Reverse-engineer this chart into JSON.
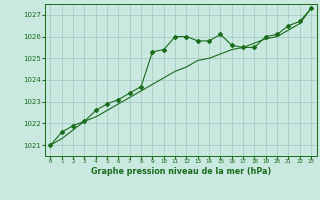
{
  "x": [
    0,
    1,
    2,
    3,
    4,
    5,
    6,
    7,
    8,
    9,
    10,
    11,
    12,
    13,
    14,
    15,
    16,
    17,
    18,
    19,
    20,
    21,
    22,
    23
  ],
  "line1": [
    1021.0,
    1021.6,
    1021.9,
    1022.1,
    1022.6,
    1022.9,
    1023.1,
    1023.4,
    1023.7,
    1025.3,
    1025.4,
    1026.0,
    1026.0,
    1025.8,
    1025.8,
    1026.1,
    1025.6,
    1025.5,
    1025.5,
    1026.0,
    1026.1,
    1026.5,
    1026.7,
    1027.3
  ],
  "line2": [
    1021.0,
    1021.3,
    1021.7,
    1022.1,
    1022.3,
    1022.6,
    1022.9,
    1023.2,
    1023.5,
    1023.8,
    1024.1,
    1024.4,
    1024.6,
    1024.9,
    1025.0,
    1025.2,
    1025.4,
    1025.5,
    1025.7,
    1025.9,
    1026.0,
    1026.3,
    1026.6,
    1027.3
  ],
  "line_color": "#1a6b1a",
  "bg_color": "#c8e8e0",
  "grid_color": "#a0c8c0",
  "title": "Graphe pression niveau de la mer (hPa)",
  "ylim": [
    1020.5,
    1027.5
  ],
  "yticks": [
    1021,
    1022,
    1023,
    1024,
    1025,
    1026,
    1027
  ],
  "xlim": [
    -0.5,
    23.5
  ],
  "xticks": [
    0,
    1,
    2,
    3,
    4,
    5,
    6,
    7,
    8,
    9,
    10,
    11,
    12,
    13,
    14,
    15,
    16,
    17,
    18,
    19,
    20,
    21,
    22,
    23
  ],
  "marker_size": 2.0,
  "linewidth": 0.8
}
